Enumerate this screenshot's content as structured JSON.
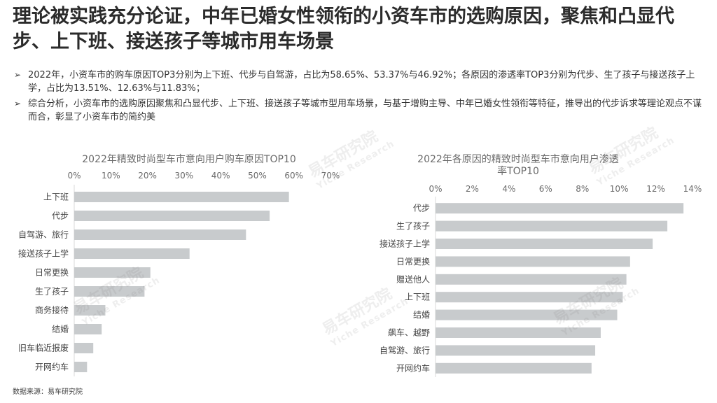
{
  "headline": "理论被实践充分论证，中年已婚女性领衔的小资车市的选购原因，聚焦和凸显代步、上下班、接送孩子等城市用车场景",
  "bullets": [
    "2022年，小资车市的购车原因TOP3分别为上下班、代步与自驾游，占比为58.65%、53.37%与46.92%；各原因的渗透率TOP3分别为代步、生了孩子与接送孩子上学，占比为13.51%、12.63%与11.83%；",
    "综合分析，小资车市的选购原因聚焦和凸显代步、上下班、接送孩子等城市型用车场景，与基于增购主导、中年已婚女性领衔等特征，推导出的代步诉求等理论观点不谋而合，彰显了小资车市的简约美"
  ],
  "bullet_marker": "➢",
  "source": "数据来源：易车研究院",
  "watermark": {
    "cn": "易车研究院",
    "en": "Yiche Research"
  },
  "colors": {
    "bar": "#c8cbcd",
    "text": "#333333",
    "title": "#6b6b6b"
  },
  "chart_data": [
    {
      "type": "bar",
      "orientation": "horizontal",
      "title": "2022年精致时尚型车市意向用户购车原因TOP10",
      "categories": [
        "上下班",
        "代步",
        "自驾游、旅行",
        "接送孩子上学",
        "日常更换",
        "生了孩子",
        "商务接待",
        "结婚",
        "旧车临近报废",
        "开网约车"
      ],
      "values": [
        58.65,
        53.37,
        46.92,
        31.5,
        20.8,
        19.2,
        8.5,
        7.5,
        5.2,
        3.5
      ],
      "xlim": [
        0,
        70
      ],
      "x_ticks": [
        "0%",
        "10%",
        "20%",
        "30%",
        "40%",
        "50%",
        "60%",
        "70%"
      ],
      "grid": false,
      "axis_position": "top"
    },
    {
      "type": "bar",
      "orientation": "horizontal",
      "title": "2022年各原因的精致时尚型车市意向用户渗透率TOP10",
      "categories": [
        "代步",
        "生了孩子",
        "接送孩子上学",
        "日常更换",
        "赠送他人",
        "上下班",
        "结婚",
        "飙车、越野",
        "自驾游、旅行",
        "开网约车"
      ],
      "values": [
        13.51,
        12.63,
        11.83,
        10.6,
        10.4,
        10.2,
        9.9,
        9.0,
        8.7,
        8.5
      ],
      "xlim": [
        0,
        14
      ],
      "x_ticks": [
        "0%",
        "2%",
        "4%",
        "6%",
        "8%",
        "10%",
        "12%",
        "14%"
      ],
      "grid": false,
      "axis_position": "top"
    }
  ]
}
